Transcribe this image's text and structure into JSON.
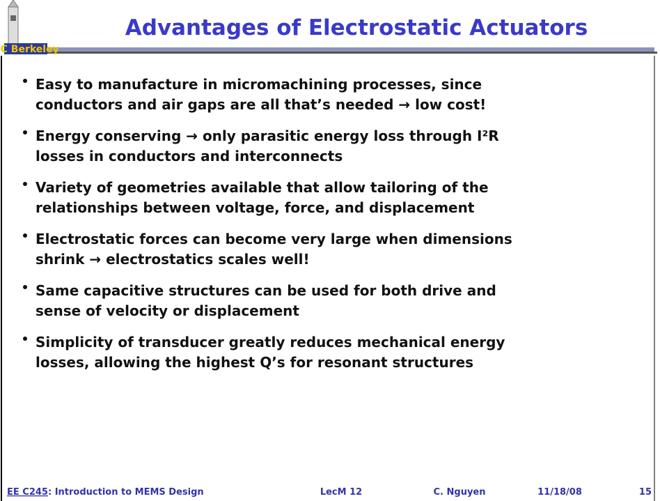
{
  "header": {
    "title": "Advantages of Electrostatic Actuators",
    "logo": "UC Berkeley"
  },
  "bullets": [
    [
      "Easy to manufacture in micromachining processes, since",
      "conductors and air gaps are all that’s needed → low cost!"
    ],
    [
      "Energy conserving → only parasitic energy loss through I²R",
      "losses in conductors and interconnects"
    ],
    [
      "Variety of geometries available that allow tailoring of the",
      "relationships between voltage, force, and displacement"
    ],
    [
      "Electrostatic forces can become very large when dimensions",
      "shrink → electrostatics scales well!"
    ],
    [
      "Same capacitive structures can be used for both drive and",
      "sense of velocity or displacement"
    ],
    [
      "Simplicity of transducer greatly reduces mechanical energy",
      "losses, allowing the highest Q’s for resonant structures"
    ]
  ],
  "footer": {
    "course": "EE C245",
    "course_title": ": Introduction to MEMS Design",
    "lecture": "LecM 12",
    "author": "C. Nguyen",
    "date": "11/18/08",
    "page": "15"
  }
}
